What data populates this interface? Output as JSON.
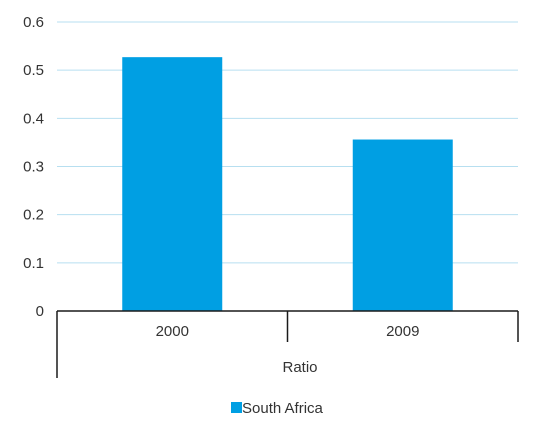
{
  "chart_data": {
    "type": "bar",
    "categories": [
      "2000",
      "2009"
    ],
    "group_label": "Ratio",
    "series": [
      {
        "name": "South Africa",
        "values": [
          0.527,
          0.356
        ],
        "color": "#009fe3"
      }
    ],
    "ylim": [
      0,
      0.6
    ],
    "yticks": [
      0,
      0.1,
      0.2,
      0.3,
      0.4,
      0.5,
      0.6
    ],
    "ytick_labels": [
      "0",
      "0.1",
      "0.2",
      "0.3",
      "0.4",
      "0.5",
      "0.6"
    ],
    "grid": true,
    "gridline_color": "#b7dff0",
    "axis_color": "#1a1a1a",
    "legend_position": "bottom-center",
    "title": "",
    "xlabel": "",
    "ylabel": ""
  }
}
